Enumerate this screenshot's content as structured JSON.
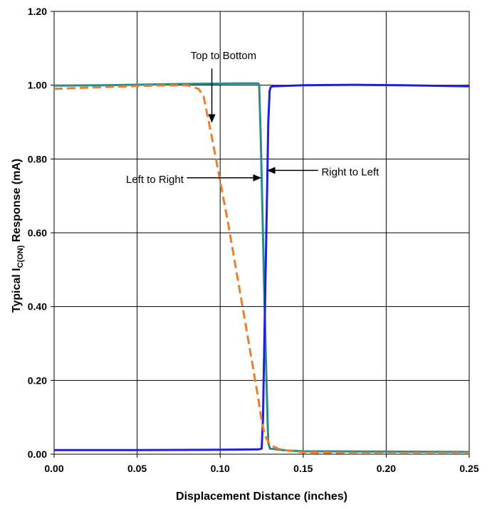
{
  "chart_data": {
    "type": "line",
    "xlabel": "Displacement Distance (inches)",
    "ylabel": {
      "prefix": "Typical I",
      "subscript": "C(ON)",
      "suffix": " Response (mA)"
    },
    "xlim": [
      0,
      0.25
    ],
    "ylim": [
      0,
      1.2
    ],
    "x_ticks": [
      0.0,
      0.05,
      0.1,
      0.15,
      0.2,
      0.25
    ],
    "x_tick_labels": [
      "0.00",
      "0.05",
      "0.10",
      "0.15",
      "0.20",
      "0.25"
    ],
    "y_ticks": [
      0.0,
      0.2,
      0.4,
      0.6,
      0.8,
      1.0,
      1.2
    ],
    "y_tick_labels": [
      "0.00",
      "0.20",
      "0.40",
      "0.60",
      "0.80",
      "1.00",
      "1.20"
    ],
    "grid": true,
    "legend": "none",
    "series": [
      {
        "key": "teal",
        "color": "#2a8c86",
        "dash": "solid",
        "x": [
          0.0,
          0.03,
          0.06,
          0.09,
          0.11,
          0.123,
          0.1235,
          0.1245,
          0.1255,
          0.1265,
          0.1275,
          0.1285,
          0.129,
          0.13,
          0.14,
          0.15,
          0.2,
          0.25
        ],
        "y": [
          0.999,
          1.0,
          1.002,
          1.004,
          1.005,
          1.005,
          1.0,
          0.85,
          0.65,
          0.45,
          0.27,
          0.1,
          0.03,
          0.015,
          0.01,
          0.008,
          0.007,
          0.006
        ]
      },
      {
        "key": "blue",
        "color": "#1f1fe0",
        "dash": "solid",
        "x": [
          0.0,
          0.05,
          0.1,
          0.123,
          0.125,
          0.1258,
          0.1266,
          0.1274,
          0.1282,
          0.129,
          0.1298,
          0.1305,
          0.132,
          0.15,
          0.18,
          0.21,
          0.25
        ],
        "y": [
          0.011,
          0.011,
          0.012,
          0.013,
          0.015,
          0.1,
          0.3,
          0.5,
          0.7,
          0.9,
          0.985,
          0.995,
          0.997,
          1.0,
          1.001,
          1.0,
          0.997
        ]
      },
      {
        "key": "orange",
        "color": "#ef7d2e",
        "dash": "dashed",
        "x": [
          0.0,
          0.03,
          0.06,
          0.08,
          0.087,
          0.09,
          0.095,
          0.1,
          0.105,
          0.11,
          0.115,
          0.12,
          0.123,
          0.125,
          0.127,
          0.13,
          0.135,
          0.14,
          0.15,
          0.18,
          0.25
        ],
        "y": [
          0.99,
          0.995,
          0.999,
          1.0,
          0.99,
          0.97,
          0.86,
          0.74,
          0.62,
          0.49,
          0.36,
          0.23,
          0.15,
          0.09,
          0.05,
          0.025,
          0.015,
          0.01,
          0.005,
          0.003,
          0.003
        ]
      }
    ],
    "annotations": [
      {
        "text": "Top to Bottom",
        "text_x": 0.102,
        "text_y": 1.08,
        "anchor": "middle",
        "arrow_from": [
          0.095,
          1.045
        ],
        "arrow_to": [
          0.095,
          0.9
        ]
      },
      {
        "text": "Left to Right",
        "text_x": 0.078,
        "text_y": 0.745,
        "anchor": "end",
        "arrow_from": [
          0.08,
          0.749
        ],
        "arrow_to": [
          0.1245,
          0.749
        ]
      },
      {
        "text": "Right to Left",
        "text_x": 0.161,
        "text_y": 0.765,
        "anchor": "start",
        "arrow_from": [
          0.159,
          0.769
        ],
        "arrow_to": [
          0.1285,
          0.769
        ]
      }
    ]
  }
}
